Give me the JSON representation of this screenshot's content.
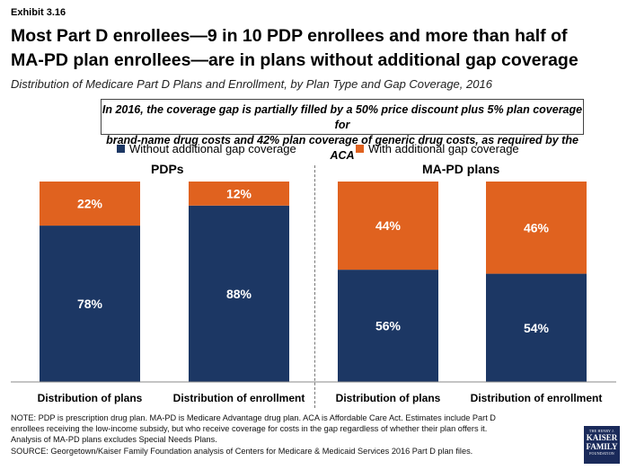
{
  "header": {
    "exhibit": "Exhibit 3.16",
    "title_line1": "Most Part D enrollees—9 in 10 PDP enrollees and more than half of",
    "title_line2": "MA-PD plan enrollees—are in plans without additional gap coverage",
    "subtitle": "Distribution of Medicare Part D Plans and Enrollment, by Plan Type and Gap Coverage, 2016"
  },
  "callout": {
    "line1": "In 2016, the coverage gap is partially filled by a 50% price discount plus 5% plan coverage for",
    "line2": "brand-name drug costs and 42% plan coverage of generic drug costs, as required by the ACA"
  },
  "legend": {
    "without": "Without additional gap coverage",
    "with": "With additional gap coverage"
  },
  "colors": {
    "without": "#1c3764",
    "with": "#e0621f"
  },
  "panels": {
    "left": "PDPs",
    "right": "MA-PD plans"
  },
  "chart_data": {
    "type": "bar",
    "stacked": true,
    "normalized_percent": true,
    "categories": [
      "Distribution of plans",
      "Distribution of enrollment",
      "Distribution of plans",
      "Distribution of enrollment"
    ],
    "groups": [
      "PDPs",
      "PDPs",
      "MA-PD plans",
      "MA-PD plans"
    ],
    "series": [
      {
        "name": "Without additional gap coverage",
        "values": [
          78,
          88,
          56,
          54
        ]
      },
      {
        "name": "With additional gap coverage",
        "values": [
          22,
          12,
          44,
          46
        ]
      }
    ],
    "ylim": [
      0,
      100
    ]
  },
  "footer": {
    "note1": "NOTE: PDP is prescription drug plan. MA-PD is Medicare Advantage drug plan. ACA is Affordable Care Act. Estimates include Part D",
    "note2": "enrollees receiving the low-income subsidy, but who receive coverage for costs in the gap regardless of whether their plan offers it.",
    "note3": "Analysis of MA-PD plans excludes Special Needs Plans.",
    "source": "SOURCE: Georgetown/Kaiser Family Foundation analysis of Centers for Medicare & Medicaid Services 2016 Part D plan files."
  },
  "logo": {
    "line1": "THE HENRY J.",
    "line2a": "KAISER",
    "line2b": "FAMILY",
    "line3": "FOUNDATION"
  }
}
